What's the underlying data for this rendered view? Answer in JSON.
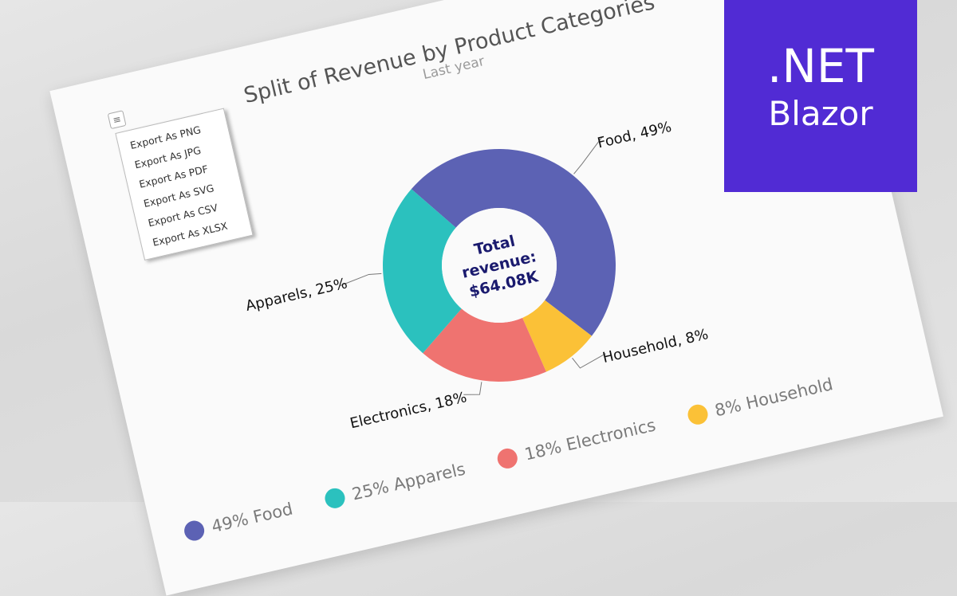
{
  "chart_data": {
    "type": "pie",
    "variant": "donut",
    "title": "Split of Revenue by Product Categories",
    "subtitle": "Last year",
    "center_text": [
      "Total",
      "revenue:",
      "$64.08K"
    ],
    "slices": [
      {
        "name": "Food",
        "value": 49,
        "color": "#5c62b4",
        "label": "Food, 49%",
        "legend": "49% Food"
      },
      {
        "name": "Household",
        "value": 8,
        "color": "#fbc137",
        "label": "Household, 8%",
        "legend": "8% Household"
      },
      {
        "name": "Electronics",
        "value": 18,
        "color": "#ef7370",
        "label": "Electronics, 18%",
        "legend": "18% Electronics"
      },
      {
        "name": "Apparels",
        "value": 25,
        "color": "#2bc1be",
        "label": "Apparels, 25%",
        "legend": "25% Apparels"
      }
    ],
    "legend_position": "bottom"
  },
  "export_menu": {
    "items": [
      "Export As PNG",
      "Export As JPG",
      "Export As PDF",
      "Export As SVG",
      "Export As CSV",
      "Export As XLSX"
    ],
    "icon": "hamburger-menu-icon"
  },
  "brand": {
    "line1": ".NET",
    "line2": "Blazor",
    "color": "#512bd4"
  }
}
